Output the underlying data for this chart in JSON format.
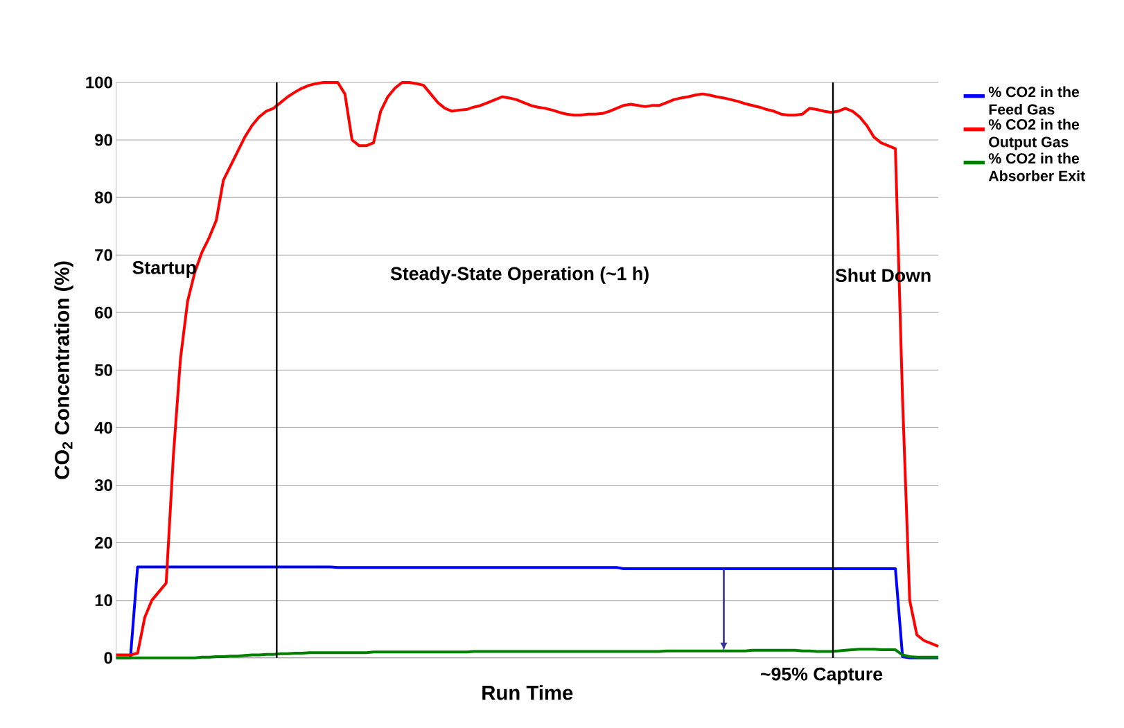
{
  "chart_data": {
    "type": "line",
    "xlabel": "Run Time",
    "ylabel": "CO$_{2}$ Concentration (%)",
    "categories": [
      null,
      null,
      null,
      null,
      null,
      null,
      null,
      null,
      null,
      null,
      null,
      null,
      null,
      null,
      null,
      null,
      null,
      null,
      null,
      null,
      null,
      null,
      null,
      null,
      null,
      null,
      null,
      null,
      null,
      null,
      null,
      null,
      null,
      null,
      null,
      null,
      null,
      null,
      null,
      null,
      null,
      null,
      null,
      null,
      null,
      null,
      null,
      null,
      null,
      null,
      null,
      null,
      null,
      null,
      null,
      null,
      null,
      null,
      null,
      null,
      null,
      null,
      null,
      null,
      null,
      null,
      null,
      null,
      null,
      null,
      null,
      null,
      null,
      null,
      null,
      null,
      null,
      null,
      null,
      null,
      null,
      null,
      null,
      null,
      null,
      null,
      null,
      null,
      null,
      null,
      null,
      null,
      null,
      null,
      null,
      null,
      null,
      null,
      null,
      null,
      null,
      null,
      null,
      null,
      null,
      null,
      null,
      null,
      null,
      null,
      null,
      null,
      null,
      null,
      null,
      null
    ],
    "series": [
      {
        "name": "% CO2 in the Feed Gas",
        "color": "#0000ff",
        "values": [
          0,
          0,
          0,
          15.8,
          15.8,
          15.8,
          15.8,
          15.8,
          15.8,
          15.8,
          15.8,
          15.8,
          15.8,
          15.8,
          15.8,
          15.8,
          15.8,
          15.8,
          15.8,
          15.8,
          15.8,
          15.8,
          15.8,
          15.8,
          15.8,
          15.8,
          15.8,
          15.8,
          15.8,
          15.8,
          15.8,
          15.7,
          15.7,
          15.7,
          15.7,
          15.7,
          15.7,
          15.7,
          15.7,
          15.7,
          15.7,
          15.7,
          15.7,
          15.7,
          15.7,
          15.7,
          15.7,
          15.7,
          15.7,
          15.7,
          15.7,
          15.7,
          15.7,
          15.7,
          15.7,
          15.7,
          15.7,
          15.7,
          15.7,
          15.7,
          15.7,
          15.7,
          15.7,
          15.7,
          15.7,
          15.7,
          15.7,
          15.7,
          15.7,
          15.7,
          15.7,
          15.5,
          15.5,
          15.5,
          15.5,
          15.5,
          15.5,
          15.5,
          15.5,
          15.5,
          15.5,
          15.5,
          15.5,
          15.5,
          15.5,
          15.5,
          15.5,
          15.5,
          15.5,
          15.5,
          15.5,
          15.5,
          15.5,
          15.5,
          15.5,
          15.5,
          15.5,
          15.5,
          15.5,
          15.5,
          15.5,
          15.5,
          15.5,
          15.5,
          15.5,
          15.5,
          15.5,
          15.5,
          15.5,
          15.5,
          0.2,
          0,
          0,
          0,
          0,
          0
        ]
      },
      {
        "name": "% CO2 in the Output Gas",
        "color": "#ff0000",
        "values": [
          0.5,
          0.5,
          0.5,
          0.8,
          7,
          10,
          11.5,
          13,
          35,
          52,
          62,
          67,
          70.5,
          73,
          76,
          83,
          85.5,
          88,
          90.5,
          92.5,
          94,
          95,
          95.5,
          96.5,
          97.5,
          98.3,
          99,
          99.5,
          99.8,
          100,
          100,
          100,
          98,
          90,
          89,
          89,
          89.5,
          95,
          97.5,
          99,
          100,
          100,
          99.8,
          99.5,
          98,
          96.5,
          95.5,
          95,
          95.2,
          95.3,
          95.7,
          96,
          96.5,
          97,
          97.5,
          97.3,
          97,
          96.5,
          96,
          95.7,
          95.5,
          95.2,
          94.8,
          94.5,
          94.3,
          94.3,
          94.5,
          94.5,
          94.6,
          95,
          95.5,
          96,
          96.2,
          96,
          95.8,
          96,
          96,
          96.5,
          97,
          97.3,
          97.5,
          97.8,
          98,
          97.8,
          97.5,
          97.3,
          97,
          96.7,
          96.3,
          96,
          95.7,
          95.3,
          95,
          94.5,
          94.3,
          94.3,
          94.5,
          95.5,
          95.3,
          95,
          94.8,
          95,
          95.5,
          95,
          94,
          92.5,
          90.5,
          89.5,
          89,
          88.5,
          45,
          10,
          4,
          3,
          2.5,
          2
        ]
      },
      {
        "name": "% CO2 in the Absorber Exit",
        "color": "#008000",
        "values": [
          0,
          0,
          0,
          0,
          0,
          0,
          0,
          0,
          0,
          0,
          0,
          0,
          0.1,
          0.1,
          0.2,
          0.2,
          0.3,
          0.3,
          0.4,
          0.5,
          0.5,
          0.6,
          0.6,
          0.7,
          0.7,
          0.8,
          0.8,
          0.9,
          0.9,
          0.9,
          0.9,
          0.9,
          0.9,
          0.9,
          0.9,
          0.9,
          1,
          1,
          1,
          1,
          1,
          1,
          1,
          1,
          1,
          1,
          1,
          1,
          1,
          1,
          1.1,
          1.1,
          1.1,
          1.1,
          1.1,
          1.1,
          1.1,
          1.1,
          1.1,
          1.1,
          1.1,
          1.1,
          1.1,
          1.1,
          1.1,
          1.1,
          1.1,
          1.1,
          1.1,
          1.1,
          1.1,
          1.1,
          1.1,
          1.1,
          1.1,
          1.1,
          1.1,
          1.2,
          1.2,
          1.2,
          1.2,
          1.2,
          1.2,
          1.2,
          1.2,
          1.2,
          1.2,
          1.2,
          1.2,
          1.3,
          1.3,
          1.3,
          1.3,
          1.3,
          1.3,
          1.3,
          1.2,
          1.2,
          1.1,
          1.1,
          1.1,
          1.2,
          1.3,
          1.4,
          1.5,
          1.5,
          1.5,
          1.4,
          1.4,
          1.4,
          0.5,
          0.2,
          0.1,
          0.1,
          0.1,
          0.1
        ]
      }
    ],
    "ylim": [
      0,
      100
    ],
    "yticks": [
      0,
      10,
      20,
      30,
      40,
      50,
      60,
      70,
      80,
      90,
      100
    ],
    "grid": "y",
    "legend": "right",
    "annotations": [
      "Startup",
      "Steady-State Operation (~1 h)",
      "Shut Down",
      "~95% Capture"
    ]
  }
}
